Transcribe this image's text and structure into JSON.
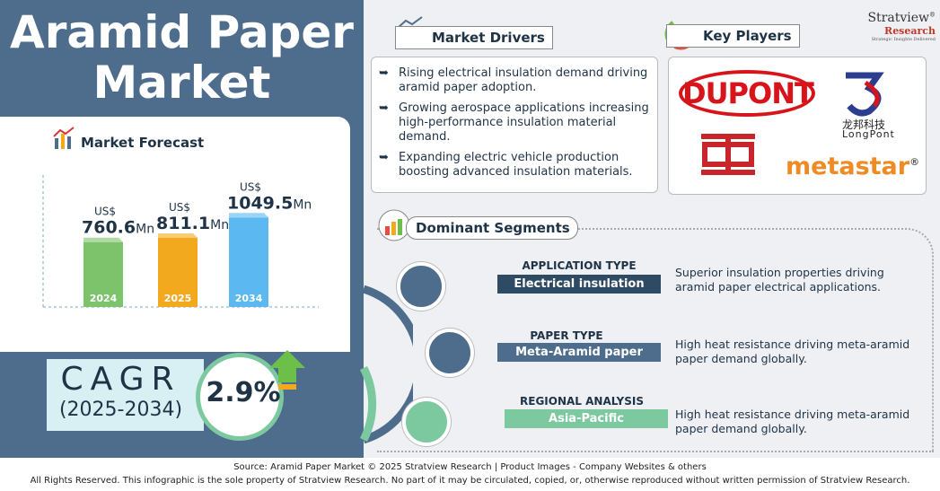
{
  "header": {
    "title_line1": "Aramid Paper",
    "title_line2": "Market"
  },
  "forecast": {
    "title": "Market Forecast",
    "currency": "US$",
    "unit": "Mn",
    "bars": [
      {
        "year": "2024",
        "value": 760.6,
        "color": "#7dc36b"
      },
      {
        "year": "2025",
        "value": 811.1,
        "color": "#f2a91d"
      },
      {
        "year": "2034",
        "value": 1049.5,
        "color": "#5bb8f0"
      }
    ]
  },
  "cagr": {
    "label": "CAGR",
    "period": "(2025-2034)",
    "value": "2.9%"
  },
  "drivers": {
    "title": "Market Drivers",
    "items": [
      "Rising electrical insulation demand driving aramid paper adoption.",
      "Growing aerospace applications increasing high-performance insulation material demand.",
      "Expanding electric vehicle production boosting advanced insulation materials."
    ]
  },
  "players": {
    "title": "Key Players",
    "dupont": "DUPONT",
    "longpont_cn": "龙邦科技",
    "longpont": "LongPont",
    "metastar": "metastar",
    "registered": "®"
  },
  "brand": {
    "name": "Stratview",
    "sub": "Research",
    "tagline": "Strategic Insights Delivered",
    "registered": "®"
  },
  "segments": {
    "title": "Dominant Segments",
    "items": [
      {
        "heading": "APPLICATION TYPE",
        "label": "Electrical insulation",
        "description": "Superior insulation properties driving aramid paper electrical applications."
      },
      {
        "heading": "PAPER TYPE",
        "label": "Meta-Aramid paper",
        "description": "High heat resistance driving meta-aramid paper demand globally."
      },
      {
        "heading": "REGIONAL ANALYSIS",
        "label": "Asia-Pacific",
        "description": "High heat resistance driving meta-aramid paper demand globally."
      }
    ]
  },
  "footer": {
    "source": "Source:  Aramid Paper Market © 2025 Stratview Research | Product Images  - Company Websites & others",
    "rights": "All Rights Reserved. This infographic is the sole property of Stratview Research. No part of it may be circulated, copied, or, otherwise reproduced without written permission of Stratview Research."
  }
}
